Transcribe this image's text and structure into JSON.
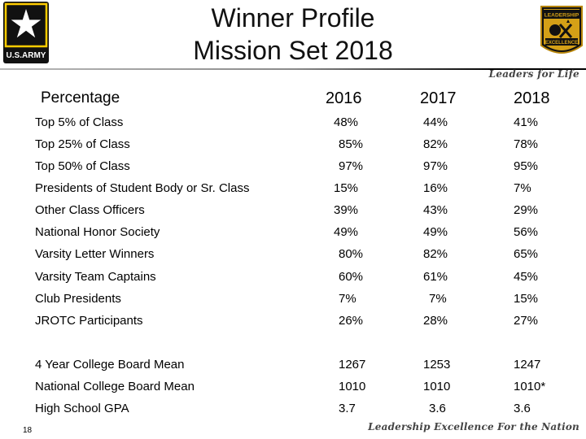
{
  "title": {
    "line1": "Winner Profile",
    "line2": "Mission Set 2018"
  },
  "logos": {
    "army_text": "U.S.ARMY",
    "rotc_top": "LEADERSHIP",
    "rotc_bottom": "EXCELLENCE",
    "motto": "Leaders for Life"
  },
  "table": {
    "headers": {
      "label": "Percentage",
      "y2016": "2016",
      "y2017": "2017",
      "y2018": "2018"
    },
    "rows": [
      {
        "label": "Top 5% of Class",
        "v2016": "48%",
        "v2017": "44%",
        "v2018": "41%"
      },
      {
        "label": "Top 25% of Class",
        "v2016": "85%",
        "v2017": "82%",
        "v2018": "78%"
      },
      {
        "label": "Top 50% of Class",
        "v2016": "97%",
        "v2017": "97%",
        "v2018": "95%"
      },
      {
        "label": "Presidents of Student Body or Sr. Class",
        "v2016": "15%",
        "v2017": "16%",
        "v2018": "7%"
      },
      {
        "label": "Other Class Officers",
        "v2016": "39%",
        "v2017": "43%",
        "v2018": "29%"
      },
      {
        "label": "National Honor Society",
        "v2016": "49%",
        "v2017": "49%",
        "v2018": "56%"
      },
      {
        "label": "Varsity Letter Winners",
        "v2016": "80%",
        "v2017": "82%",
        "v2018": "65%"
      },
      {
        "label": "Varsity Team Captains",
        "v2016": "60%",
        "v2017": "61%",
        "v2018": "45%"
      },
      {
        "label": "Club Presidents",
        "v2016": "7%",
        "v2017": "7%",
        "v2018": "15%"
      },
      {
        "label": "JROTC Participants",
        "v2016": "26%",
        "v2017": "28%",
        "v2018": "27%"
      },
      {
        "label": "4 Year College Board Mean",
        "v2016": "1267",
        "v2017": "1253",
        "v2018": "1247"
      },
      {
        "label": "National College Board Mean",
        "v2016": "1010",
        "v2017": "1010",
        "v2018": "1010*"
      },
      {
        "label": "High School GPA",
        "v2016": "3.7",
        "v2017": "3.6",
        "v2018": "3.6"
      }
    ]
  },
  "footer": {
    "page_number": "18",
    "tagline": "Leadership Excellence For the Nation"
  }
}
